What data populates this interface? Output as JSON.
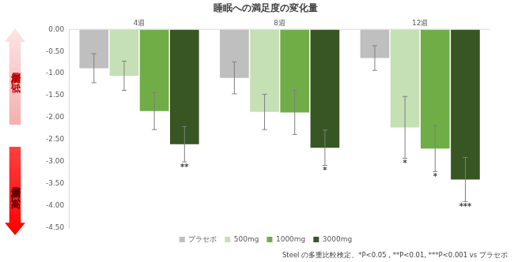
{
  "chart_data": {
    "type": "bar",
    "title": "睡眠への満足度の変化量",
    "categories": [
      "4週",
      "8週",
      "12週"
    ],
    "series": [
      {
        "name": "プラセボ",
        "color": "#bfbfbf",
        "values": [
          -0.88,
          -1.1,
          -0.65
        ],
        "errors": [
          0.33,
          0.36,
          0.28
        ],
        "significance": [
          null,
          null,
          null
        ]
      },
      {
        "name": "500mg",
        "color": "#c5e0b4",
        "values": [
          -1.05,
          -1.87,
          -2.22
        ],
        "errors": [
          0.33,
          0.4,
          0.7
        ],
        "significance": [
          null,
          null,
          "*"
        ]
      },
      {
        "name": "1000mg",
        "color": "#70ad47",
        "values": [
          -1.85,
          -1.88,
          -2.7
        ],
        "errors": [
          0.42,
          0.5,
          0.52
        ],
        "significance": [
          null,
          null,
          "*"
        ]
      },
      {
        "name": "3000mg",
        "color": "#375623",
        "values": [
          -2.6,
          -2.68,
          -3.4
        ],
        "errors": [
          0.4,
          0.4,
          0.5
        ],
        "significance": [
          "**",
          "*",
          "***"
        ]
      }
    ],
    "ylim": [
      -4.5,
      0
    ],
    "yticks": [
      {
        "value": 0,
        "label": "0.00"
      },
      {
        "value": -0.5,
        "label": "-0.50"
      },
      {
        "value": -1,
        "label": "-1.00"
      },
      {
        "value": -1.5,
        "label": "-1.50"
      },
      {
        "value": -2,
        "label": "-2.00"
      },
      {
        "value": -2.5,
        "label": "-2.50"
      },
      {
        "value": -3,
        "label": "-3.00"
      },
      {
        "value": -3.5,
        "label": "-3.50"
      },
      {
        "value": -4,
        "label": "-4.00"
      },
      {
        "value": -4.5,
        "label": "-4.50"
      }
    ],
    "grid": false,
    "legend": "bottom",
    "annotations": {
      "top_label": "満足度が低い",
      "bottom_label": "満足度が高い",
      "footnote": "Steel の多重比較検定、*P<0.05 , **P<0.01, ***P<0.001 vs プラセボ"
    }
  }
}
